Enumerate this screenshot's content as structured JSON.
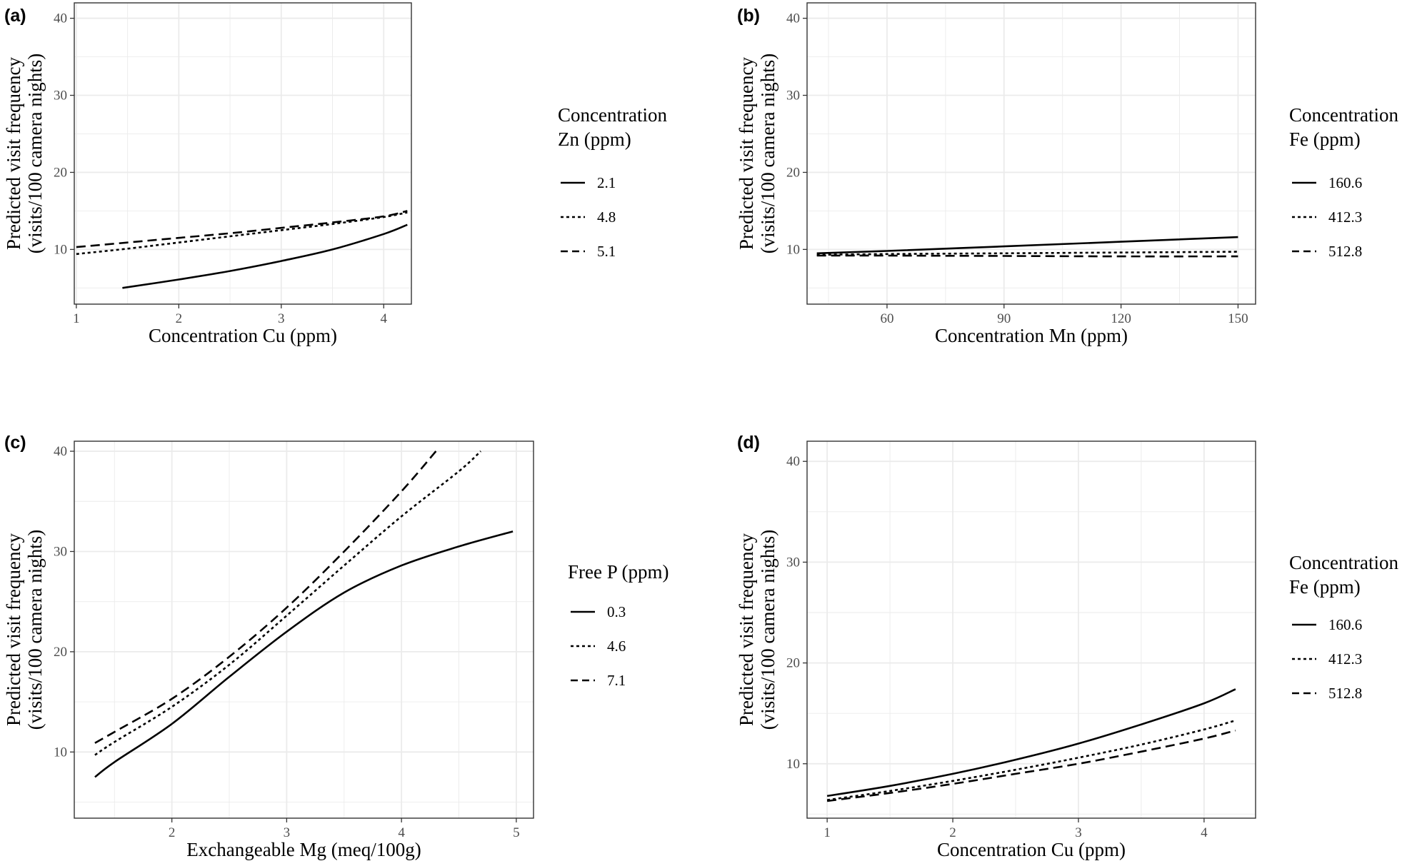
{
  "figure": {
    "background": "#ffffff",
    "line_color": "#000000",
    "grid_color": "#ebebeb"
  },
  "chart_data": [
    {
      "type": "line",
      "panel_label": "(a)",
      "xlabel": "Concentration Cu (ppm)",
      "ylabel_line1": "Predicted visit frequency",
      "ylabel_line2": "(visits/100 camera nights)",
      "xlim": [
        0.98,
        4.27
      ],
      "ylim": [
        2.9,
        42.0
      ],
      "xticks": [
        1,
        2,
        3,
        4
      ],
      "xtick_labels": [
        "1",
        "2",
        "3",
        "4"
      ],
      "yticks": [
        10,
        20,
        30,
        40
      ],
      "ytick_labels": [
        "10",
        "20",
        "30",
        "40"
      ],
      "legend_title": [
        "Concentration",
        "Zn (ppm)"
      ],
      "series": [
        {
          "name": "2.1",
          "dash": "solid",
          "x": [
            1.45,
            2.0,
            2.5,
            3.0,
            3.5,
            4.0,
            4.23
          ],
          "y": [
            5.0,
            6.1,
            7.2,
            8.5,
            10.0,
            12.0,
            13.2
          ]
        },
        {
          "name": "4.8",
          "dash": "dotted",
          "x": [
            1.0,
            1.5,
            2.0,
            2.5,
            3.0,
            3.5,
            4.0,
            4.23
          ],
          "y": [
            9.4,
            10.1,
            10.9,
            11.7,
            12.5,
            13.3,
            14.2,
            14.8
          ]
        },
        {
          "name": "5.1",
          "dash": "dashed",
          "x": [
            1.0,
            1.5,
            2.0,
            2.5,
            3.0,
            3.5,
            4.0,
            4.23
          ],
          "y": [
            10.3,
            10.9,
            11.5,
            12.1,
            12.8,
            13.5,
            14.3,
            15.0
          ]
        }
      ]
    },
    {
      "type": "line",
      "panel_label": "(b)",
      "xlabel": "Concentration Mn (ppm)",
      "ylabel_line1": "Predicted visit frequency",
      "ylabel_line2": "(visits/100 camera nights)",
      "xlim": [
        39.5,
        154.5
      ],
      "ylim": [
        2.9,
        42.0
      ],
      "xticks": [
        60,
        90,
        120,
        150
      ],
      "xtick_labels": [
        "60",
        "90",
        "120",
        "150"
      ],
      "yticks": [
        10,
        20,
        30,
        40
      ],
      "ytick_labels": [
        "10",
        "20",
        "30",
        "40"
      ],
      "legend_title": [
        "Concentration",
        "Fe (ppm)"
      ],
      "series": [
        {
          "name": "160.6",
          "dash": "solid",
          "x": [
            42,
            60,
            90,
            120,
            150
          ],
          "y": [
            9.5,
            9.8,
            10.4,
            11.0,
            11.6
          ]
        },
        {
          "name": "412.3",
          "dash": "dotted",
          "x": [
            42,
            60,
            90,
            120,
            150
          ],
          "y": [
            9.3,
            9.4,
            9.5,
            9.6,
            9.7
          ]
        },
        {
          "name": "512.8",
          "dash": "dashed",
          "x": [
            42,
            60,
            90,
            120,
            150
          ],
          "y": [
            9.2,
            9.2,
            9.15,
            9.1,
            9.1
          ]
        }
      ]
    },
    {
      "type": "line",
      "panel_label": "(c)",
      "xlabel": "Exchangeable Mg (meq/100g)",
      "ylabel_line1": "Predicted visit frequency",
      "ylabel_line2": "(visits/100 camera nights)",
      "xlim": [
        1.15,
        5.15
      ],
      "ylim": [
        3.4,
        41.0
      ],
      "xticks": [
        2,
        3,
        4,
        5
      ],
      "xtick_labels": [
        "2",
        "3",
        "4",
        "5"
      ],
      "yticks": [
        10,
        20,
        30,
        40
      ],
      "ytick_labels": [
        "10",
        "20",
        "30",
        "40"
      ],
      "legend_title": [
        "Free P (ppm)"
      ],
      "series": [
        {
          "name": "0.3",
          "dash": "solid",
          "x": [
            1.33,
            1.5,
            2.0,
            2.5,
            3.0,
            3.5,
            4.0,
            4.5,
            4.97
          ],
          "y": [
            7.5,
            9.0,
            12.8,
            17.5,
            22.0,
            25.9,
            28.6,
            30.5,
            32.0
          ]
        },
        {
          "name": "4.6",
          "dash": "dotted",
          "x": [
            1.33,
            1.5,
            2.0,
            2.5,
            3.0,
            3.5,
            4.0,
            4.5,
            4.69
          ],
          "y": [
            9.7,
            11.0,
            14.5,
            18.7,
            23.6,
            28.6,
            33.5,
            38.0,
            40.0
          ]
        },
        {
          "name": "7.1",
          "dash": "dashed",
          "x": [
            1.33,
            1.5,
            2.0,
            2.5,
            3.0,
            3.5,
            4.0,
            4.3
          ],
          "y": [
            10.9,
            12.0,
            15.3,
            19.5,
            24.4,
            30.0,
            36.0,
            40.0
          ]
        }
      ]
    },
    {
      "type": "line",
      "panel_label": "(d)",
      "xlabel": "Concentration Cu (ppm)",
      "ylabel_line1": "Predicted visit frequency",
      "ylabel_line2": "(visits/100 camera nights)",
      "xlim": [
        0.84,
        4.41
      ],
      "ylim": [
        4.6,
        42.0
      ],
      "xticks": [
        1,
        2,
        3,
        4
      ],
      "xtick_labels": [
        "1",
        "2",
        "3",
        "4"
      ],
      "yticks": [
        10,
        20,
        30,
        40
      ],
      "ytick_labels": [
        "10",
        "20",
        "30",
        "40"
      ],
      "legend_title": [
        "Concentration",
        "Fe (ppm)"
      ],
      "series": [
        {
          "name": "160.6",
          "dash": "solid",
          "x": [
            1.0,
            1.5,
            2.0,
            2.5,
            3.0,
            3.5,
            4.0,
            4.25
          ],
          "y": [
            6.8,
            7.8,
            9.0,
            10.4,
            12.0,
            13.9,
            16.0,
            17.4
          ]
        },
        {
          "name": "412.3",
          "dash": "dotted",
          "x": [
            1.0,
            1.5,
            2.0,
            2.5,
            3.0,
            3.5,
            4.0,
            4.25
          ],
          "y": [
            6.4,
            7.3,
            8.3,
            9.4,
            10.6,
            11.9,
            13.4,
            14.3
          ]
        },
        {
          "name": "512.8",
          "dash": "dashed",
          "x": [
            1.0,
            1.5,
            2.0,
            2.5,
            3.0,
            3.5,
            4.0,
            4.25
          ],
          "y": [
            6.3,
            7.1,
            8.0,
            9.0,
            10.0,
            11.2,
            12.5,
            13.3
          ]
        }
      ]
    }
  ]
}
